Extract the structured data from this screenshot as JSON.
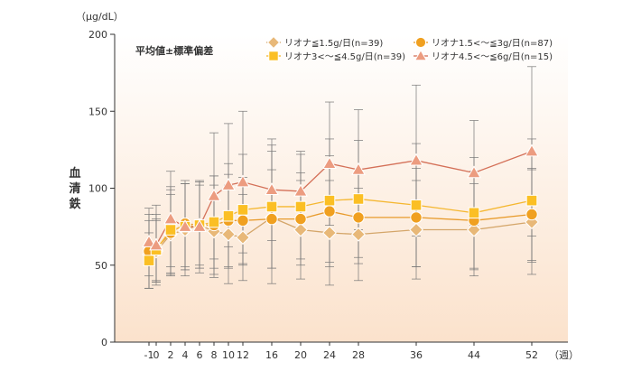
{
  "chart_data": {
    "type": "line",
    "note": "平均値±標準偏差",
    "ylabel": "血清鉄",
    "y_unit": "（μg/dL）",
    "x_unit": "（週）",
    "ylim": [
      0,
      200
    ],
    "yticks": [
      0,
      50,
      100,
      150,
      200
    ],
    "x": [
      -1,
      0,
      2,
      4,
      6,
      8,
      10,
      12,
      16,
      20,
      24,
      28,
      36,
      44,
      52
    ],
    "x_tick_labels": [
      "-1",
      "0",
      "2",
      "4",
      "6",
      "8",
      "10",
      "12",
      "16",
      "20",
      "24",
      "28",
      "36",
      "44",
      "52"
    ],
    "series": [
      {
        "name": "リオナ≦1.5g/日(n=39)",
        "marker": "diamond",
        "color": "#e8b878",
        "line_color": "#d4a66a",
        "values": [
          57,
          59,
          70,
          73,
          76,
          72,
          70,
          68,
          81,
          73,
          71,
          70,
          73,
          73,
          78
        ],
        "sd": [
          22,
          20,
          26,
          30,
          28,
          30,
          32,
          28,
          43,
          32,
          34,
          30,
          32,
          30,
          34
        ]
      },
      {
        "name": "リオナ1.5<～≦3g/日(n=87)",
        "marker": "circle",
        "color": "#f0a020",
        "line_color": "#e89b2c",
        "values": [
          59,
          61,
          71,
          77,
          76,
          76,
          79,
          79,
          80,
          80,
          85,
          81,
          81,
          79,
          83
        ],
        "sd": [
          24,
          22,
          28,
          28,
          26,
          32,
          30,
          28,
          32,
          30,
          36,
          30,
          32,
          32,
          30
        ]
      },
      {
        "name": "リオナ3<～≦4.5g/日(n=39)",
        "marker": "square",
        "color": "#fbbf24",
        "line_color": "#f5b730",
        "values": [
          53,
          60,
          73,
          75,
          76,
          78,
          82,
          86,
          88,
          88,
          92,
          93,
          89,
          84,
          92
        ],
        "sd": [
          18,
          20,
          28,
          28,
          28,
          30,
          34,
          36,
          40,
          34,
          40,
          38,
          40,
          36,
          40
        ]
      },
      {
        "name": "リオナ4.5<～≦6g/日(n=15)",
        "marker": "triangle",
        "color": "#ec9c80",
        "line_color": "#d47058",
        "values": [
          65,
          63,
          80,
          75,
          75,
          95,
          102,
          104,
          99,
          98,
          116,
          112,
          118,
          110,
          124
        ],
        "sd": [
          22,
          26,
          31,
          28,
          30,
          41,
          40,
          46,
          33,
          26,
          40,
          39,
          49,
          34,
          55
        ]
      }
    ]
  }
}
